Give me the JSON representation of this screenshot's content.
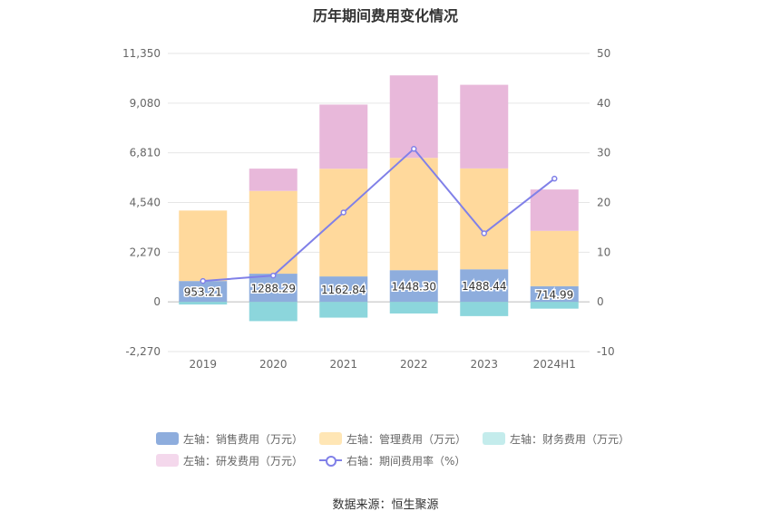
{
  "title": "历年期间费用变化情况",
  "source": "数据来源：恒生聚源",
  "legend": [
    {
      "label": "左轴：销售费用（万元）",
      "color": "#8eaddd"
    },
    {
      "label": "左轴：管理费用（万元）",
      "color": "#ffe6b5"
    },
    {
      "label": "左轴：财务费用（万元）",
      "color": "#c4ecec"
    },
    {
      "label": "左轴：研发费用（万元）",
      "color": "#f4d8ec"
    },
    {
      "label": "右轴：期间费用率（%）",
      "color": "#8080e8"
    }
  ],
  "chart_data": {
    "type": "bar",
    "title": "历年期间费用变化情况",
    "categories": [
      "2019",
      "2020",
      "2021",
      "2022",
      "2023",
      "2024H1"
    ],
    "left_axis": {
      "min": -2270,
      "max": 11350,
      "ticks": [
        "-2,270",
        "0",
        "2,270",
        "4,540",
        "6,810",
        "9,080",
        "11,350"
      ]
    },
    "right_axis": {
      "min": -10,
      "max": 50,
      "ticks": [
        "-10",
        "0",
        "10",
        "20",
        "30",
        "40",
        "50"
      ]
    },
    "series": [
      {
        "name": "左轴：销售费用（万元）",
        "axis": "left",
        "color": "#8eaddd",
        "values": [
          953.21,
          1288.29,
          1162.84,
          1448.3,
          1488.44,
          714.99
        ],
        "labels": [
          "953.21",
          "1288.29",
          "1162.84",
          "1448.30",
          "1488.44",
          "714.99"
        ]
      },
      {
        "name": "左轴：管理费用（万元）",
        "axis": "left",
        "color": "#ffd99c",
        "values": [
          3220,
          3780,
          4920,
          5130,
          4610,
          2530
        ]
      },
      {
        "name": "左轴：财务费用（万元）",
        "axis": "left",
        "color": "#8cd6dc",
        "values": [
          -120,
          -880,
          -720,
          -530,
          -650,
          -310
        ]
      },
      {
        "name": "左轴：研发费用（万元）",
        "axis": "left",
        "color": "#e8b8da",
        "values": [
          0,
          1020,
          2930,
          3770,
          3820,
          1890
        ]
      },
      {
        "name": "右轴：期间费用率（%）",
        "axis": "right",
        "type": "line",
        "color": "#8080e8",
        "values": [
          4.2,
          5.3,
          18.0,
          30.8,
          13.8,
          24.8
        ]
      }
    ],
    "grid": true,
    "legend_position": "bottom"
  }
}
